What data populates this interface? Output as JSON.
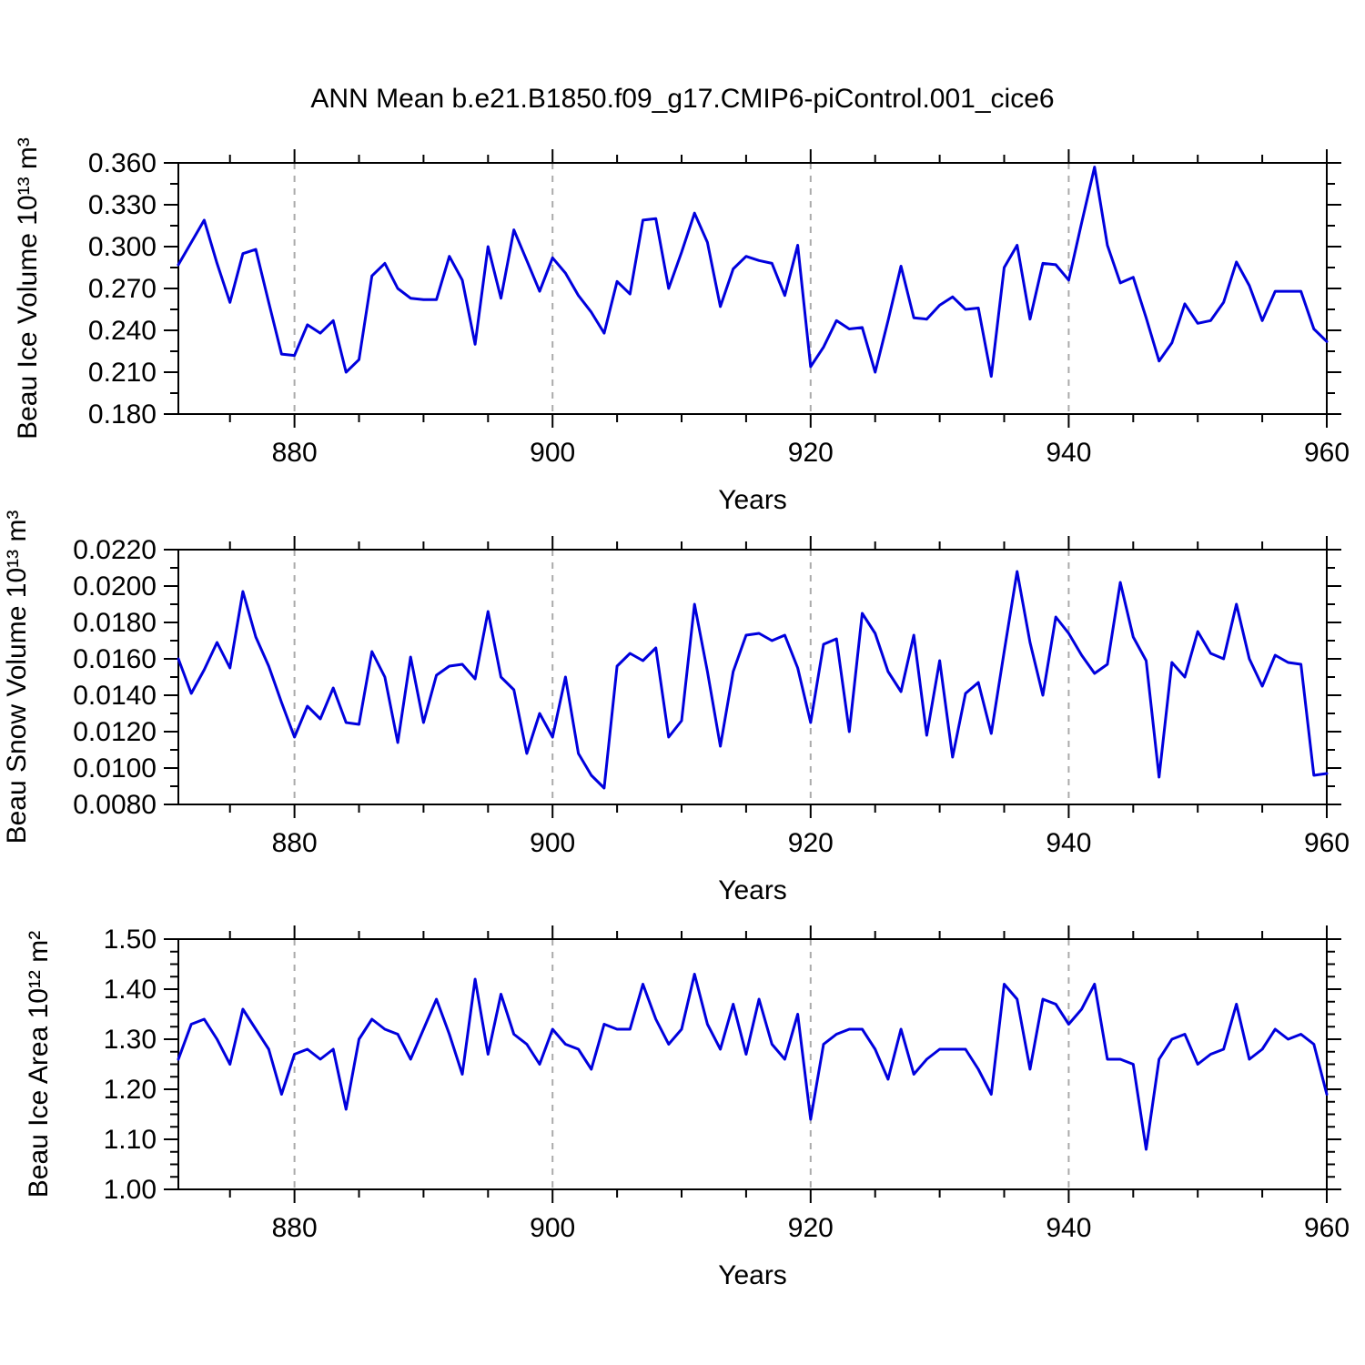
{
  "title": "ANN Mean b.e21.B1850.f09_g17.CMIP6-piControl.001_cice6",
  "xlabel": "Years",
  "line_color": "#0000dd",
  "grid_color": "#aaaaaa",
  "years": [
    871,
    872,
    873,
    874,
    875,
    876,
    877,
    878,
    879,
    880,
    881,
    882,
    883,
    884,
    885,
    886,
    887,
    888,
    889,
    890,
    891,
    892,
    893,
    894,
    895,
    896,
    897,
    898,
    899,
    900,
    901,
    902,
    903,
    904,
    905,
    906,
    907,
    908,
    909,
    910,
    911,
    912,
    913,
    914,
    915,
    916,
    917,
    918,
    919,
    920,
    921,
    922,
    923,
    924,
    925,
    926,
    927,
    928,
    929,
    930,
    931,
    932,
    933,
    934,
    935,
    936,
    937,
    938,
    939,
    940,
    941,
    942,
    943,
    944,
    945,
    946,
    947,
    948,
    949,
    950,
    951,
    952,
    953,
    954,
    955,
    956,
    957,
    958,
    959,
    960
  ],
  "chart_data": [
    {
      "id": "beau-ice-volume",
      "type": "line",
      "ylabel": "Beau Ice Volume 10¹³ m³",
      "xlabel": "Years",
      "xlim": [
        871,
        960
      ],
      "ylim": [
        0.18,
        0.36
      ],
      "yticks": [
        "0.180",
        "0.210",
        "0.240",
        "0.270",
        "0.300",
        "0.330",
        "0.360"
      ],
      "yminor_step": 0.015,
      "xticks": [
        880,
        900,
        920,
        940,
        960
      ],
      "xminor_step": 5,
      "grid_years": [
        880,
        900,
        920,
        940
      ],
      "legend": "none",
      "values": [
        0.287,
        0.303,
        0.319,
        0.288,
        0.26,
        0.295,
        0.298,
        0.26,
        0.223,
        0.222,
        0.244,
        0.238,
        0.247,
        0.21,
        0.219,
        0.279,
        0.288,
        0.27,
        0.263,
        0.262,
        0.262,
        0.293,
        0.276,
        0.23,
        0.3,
        0.263,
        0.312,
        0.29,
        0.268,
        0.292,
        0.281,
        0.265,
        0.253,
        0.238,
        0.275,
        0.266,
        0.319,
        0.32,
        0.27,
        0.296,
        0.324,
        0.303,
        0.257,
        0.284,
        0.293,
        0.29,
        0.288,
        0.265,
        0.301,
        0.214,
        0.228,
        0.247,
        0.241,
        0.242,
        0.21,
        0.247,
        0.286,
        0.249,
        0.248,
        0.258,
        0.264,
        0.255,
        0.256,
        0.207,
        0.285,
        0.301,
        0.248,
        0.288,
        0.287,
        0.276,
        0.317,
        0.357,
        0.301,
        0.274,
        0.278,
        0.249,
        0.218,
        0.231,
        0.259,
        0.245,
        0.247,
        0.26,
        0.289,
        0.272,
        0.247,
        0.268,
        0.268,
        0.268,
        0.241,
        0.232
      ]
    },
    {
      "id": "beau-snow-volume",
      "type": "line",
      "ylabel": "Beau Snow Volume 10¹³ m³",
      "xlabel": "Years",
      "xlim": [
        871,
        960
      ],
      "ylim": [
        0.008,
        0.022
      ],
      "yticks": [
        "0.0080",
        "0.0100",
        "0.0120",
        "0.0140",
        "0.0160",
        "0.0180",
        "0.0200",
        "0.0220"
      ],
      "yminor_step": 0.001,
      "xticks": [
        880,
        900,
        920,
        940,
        960
      ],
      "xminor_step": 5,
      "grid_years": [
        880,
        900,
        920,
        940
      ],
      "legend": "none",
      "values": [
        0.016,
        0.0141,
        0.0154,
        0.0169,
        0.0155,
        0.0197,
        0.0172,
        0.0156,
        0.0136,
        0.0117,
        0.0134,
        0.0127,
        0.0144,
        0.0125,
        0.0124,
        0.0164,
        0.015,
        0.0114,
        0.0161,
        0.0125,
        0.0151,
        0.0156,
        0.0157,
        0.0149,
        0.0186,
        0.015,
        0.0143,
        0.0108,
        0.013,
        0.0117,
        0.015,
        0.0108,
        0.0096,
        0.0089,
        0.0156,
        0.0163,
        0.0159,
        0.0166,
        0.0117,
        0.0126,
        0.019,
        0.0153,
        0.0112,
        0.0153,
        0.0173,
        0.0174,
        0.017,
        0.0173,
        0.0155,
        0.0125,
        0.0168,
        0.0171,
        0.012,
        0.0185,
        0.0174,
        0.0153,
        0.0142,
        0.0173,
        0.0118,
        0.0159,
        0.0106,
        0.0141,
        0.0147,
        0.0119,
        0.0164,
        0.0208,
        0.0169,
        0.014,
        0.0183,
        0.0174,
        0.0162,
        0.0152,
        0.0157,
        0.0202,
        0.0172,
        0.0159,
        0.0095,
        0.0158,
        0.015,
        0.0175,
        0.0163,
        0.016,
        0.019,
        0.016,
        0.0145,
        0.0162,
        0.0158,
        0.0157,
        0.0096,
        0.0097
      ]
    },
    {
      "id": "beau-ice-area",
      "type": "line",
      "ylabel": "Beau Ice Area 10¹² m²",
      "xlabel": "Years",
      "xlim": [
        871,
        960
      ],
      "ylim": [
        1.0,
        1.5
      ],
      "yticks": [
        "1.00",
        "1.10",
        "1.20",
        "1.30",
        "1.40",
        "1.50"
      ],
      "yminor_step": 0.025,
      "xticks": [
        880,
        900,
        920,
        940,
        960
      ],
      "xminor_step": 5,
      "grid_years": [
        880,
        900,
        920,
        940
      ],
      "legend": "none",
      "values": [
        1.26,
        1.33,
        1.34,
        1.3,
        1.25,
        1.36,
        1.32,
        1.28,
        1.19,
        1.27,
        1.28,
        1.26,
        1.28,
        1.16,
        1.3,
        1.34,
        1.32,
        1.31,
        1.26,
        1.32,
        1.38,
        1.31,
        1.23,
        1.42,
        1.27,
        1.39,
        1.31,
        1.29,
        1.25,
        1.32,
        1.29,
        1.28,
        1.24,
        1.33,
        1.32,
        1.32,
        1.41,
        1.34,
        1.29,
        1.32,
        1.43,
        1.33,
        1.28,
        1.37,
        1.27,
        1.38,
        1.29,
        1.26,
        1.35,
        1.14,
        1.29,
        1.31,
        1.32,
        1.32,
        1.28,
        1.22,
        1.32,
        1.23,
        1.26,
        1.28,
        1.28,
        1.28,
        1.24,
        1.19,
        1.41,
        1.38,
        1.24,
        1.38,
        1.37,
        1.33,
        1.36,
        1.41,
        1.26,
        1.26,
        1.25,
        1.08,
        1.26,
        1.3,
        1.31,
        1.25,
        1.27,
        1.28,
        1.37,
        1.26,
        1.28,
        1.32,
        1.3,
        1.31,
        1.29,
        1.19
      ]
    }
  ]
}
